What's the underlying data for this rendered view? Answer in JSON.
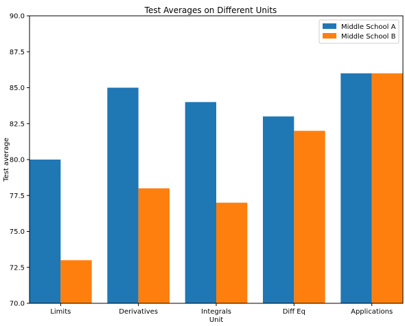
{
  "chart_data": {
    "type": "bar",
    "title": "Test Averages on Different Units",
    "xlabel": "Unit",
    "ylabel": "Test average",
    "categories": [
      "Limits",
      "Derivatives",
      "Integrals",
      "Diff Eq",
      "Applications"
    ],
    "series": [
      {
        "name": "Middle School A",
        "values": [
          80,
          85,
          84,
          83,
          86
        ],
        "color": "#1f77b4"
      },
      {
        "name": "Middle School B",
        "values": [
          73,
          78,
          77,
          82,
          86
        ],
        "color": "#ff7f0e"
      }
    ],
    "ylim": [
      70,
      90
    ],
    "yticks": [
      "70.0",
      "72.5",
      "75.0",
      "77.5",
      "80.0",
      "82.5",
      "85.0",
      "87.5",
      "90.0"
    ],
    "grid": false,
    "legend_position": "top-right"
  }
}
